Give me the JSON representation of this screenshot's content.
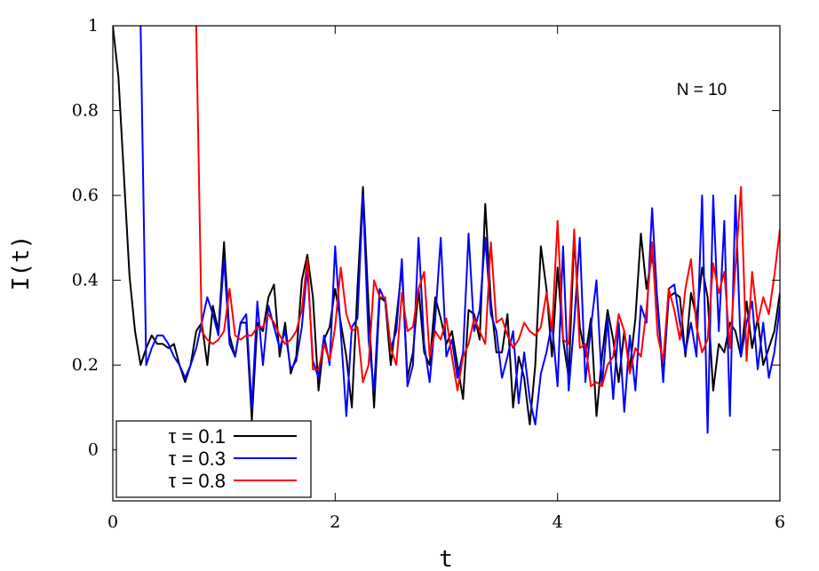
{
  "chart_data": {
    "type": "line",
    "xlabel": "t",
    "ylabel": "I(t)",
    "xlim": [
      0,
      6
    ],
    "ylim": [
      -0.12,
      1.0
    ],
    "xticks": [
      "0",
      "2",
      "4",
      "6"
    ],
    "yticks": [
      "0",
      "0.2",
      "0.4",
      "0.6",
      "0.8",
      "1"
    ],
    "annotation": "N = 10",
    "grid": false,
    "legend_position": "bottom-left",
    "series": [
      {
        "name": "τ = 0.1",
        "color": "#000000",
        "x": [
          0.0,
          0.05,
          0.15,
          0.2,
          0.25,
          0.3,
          0.35,
          0.4,
          0.45,
          0.5,
          0.55,
          0.6,
          0.65,
          0.7,
          0.75,
          0.8,
          0.85,
          0.9,
          0.95,
          1.0,
          1.05,
          1.1,
          1.15,
          1.2,
          1.25,
          1.3,
          1.35,
          1.4,
          1.45,
          1.5,
          1.55,
          1.6,
          1.65,
          1.7,
          1.75,
          1.8,
          1.85,
          1.9,
          1.95,
          2.0,
          2.05,
          2.1,
          2.15,
          2.2,
          2.25,
          2.3,
          2.35,
          2.4,
          2.45,
          2.5,
          2.55,
          2.6,
          2.65,
          2.7,
          2.75,
          2.8,
          2.85,
          2.9,
          2.95,
          3.0,
          3.05,
          3.1,
          3.15,
          3.2,
          3.25,
          3.3,
          3.35,
          3.4,
          3.45,
          3.5,
          3.55,
          3.6,
          3.65,
          3.7,
          3.75,
          3.8,
          3.85,
          3.9,
          3.95,
          4.0,
          4.05,
          4.1,
          4.15,
          4.2,
          4.25,
          4.3,
          4.35,
          4.4,
          4.45,
          4.5,
          4.55,
          4.6,
          4.65,
          4.7,
          4.75,
          4.8,
          4.85,
          4.9,
          4.95,
          5.0,
          5.05,
          5.1,
          5.15,
          5.2,
          5.25,
          5.3,
          5.35,
          5.4,
          5.45,
          5.5,
          5.55,
          5.6,
          5.65,
          5.7,
          5.75,
          5.8,
          5.85,
          5.9,
          5.95,
          6.0
        ],
        "values": [
          1.0,
          0.88,
          0.41,
          0.28,
          0.2,
          0.24,
          0.27,
          0.25,
          0.25,
          0.24,
          0.25,
          0.2,
          0.16,
          0.2,
          0.28,
          0.3,
          0.2,
          0.34,
          0.28,
          0.49,
          0.27,
          0.22,
          0.3,
          0.3,
          0.07,
          0.3,
          0.28,
          0.36,
          0.39,
          0.22,
          0.3,
          0.18,
          0.22,
          0.4,
          0.46,
          0.36,
          0.14,
          0.26,
          0.29,
          0.38,
          0.3,
          0.22,
          0.1,
          0.38,
          0.62,
          0.34,
          0.1,
          0.36,
          0.35,
          0.2,
          0.31,
          0.43,
          0.17,
          0.23,
          0.38,
          0.23,
          0.2,
          0.36,
          0.31,
          0.25,
          0.28,
          0.2,
          0.12,
          0.33,
          0.32,
          0.26,
          0.58,
          0.35,
          0.23,
          0.23,
          0.32,
          0.1,
          0.22,
          0.17,
          0.06,
          0.2,
          0.48,
          0.38,
          0.22,
          0.43,
          0.26,
          0.17,
          0.5,
          0.29,
          0.22,
          0.31,
          0.08,
          0.22,
          0.33,
          0.26,
          0.16,
          0.28,
          0.19,
          0.31,
          0.51,
          0.38,
          0.46,
          0.35,
          0.17,
          0.36,
          0.37,
          0.36,
          0.22,
          0.37,
          0.31,
          0.43,
          0.36,
          0.14,
          0.25,
          0.23,
          0.3,
          0.28,
          0.22,
          0.35,
          0.24,
          0.31,
          0.2,
          0.24,
          0.28,
          0.37
        ]
      },
      {
        "name": "τ = 0.3",
        "color": "#0000ff",
        "x": [
          0.25,
          0.3,
          0.35,
          0.4,
          0.45,
          0.5,
          0.55,
          0.6,
          0.65,
          0.7,
          0.75,
          0.8,
          0.85,
          0.9,
          0.95,
          1.0,
          1.05,
          1.1,
          1.15,
          1.2,
          1.25,
          1.3,
          1.35,
          1.4,
          1.45,
          1.5,
          1.55,
          1.6,
          1.65,
          1.7,
          1.75,
          1.8,
          1.85,
          1.9,
          1.95,
          2.0,
          2.05,
          2.1,
          2.15,
          2.2,
          2.25,
          2.3,
          2.35,
          2.4,
          2.45,
          2.5,
          2.55,
          2.6,
          2.65,
          2.7,
          2.75,
          2.8,
          2.85,
          2.9,
          2.95,
          3.0,
          3.05,
          3.1,
          3.15,
          3.2,
          3.25,
          3.3,
          3.35,
          3.4,
          3.45,
          3.5,
          3.55,
          3.6,
          3.65,
          3.7,
          3.75,
          3.8,
          3.85,
          3.9,
          3.95,
          4.0,
          4.05,
          4.1,
          4.15,
          4.2,
          4.25,
          4.3,
          4.35,
          4.4,
          4.45,
          4.5,
          4.55,
          4.6,
          4.65,
          4.7,
          4.75,
          4.8,
          4.85,
          4.9,
          4.95,
          5.0,
          5.05,
          5.1,
          5.15,
          5.2,
          5.25,
          5.3,
          5.35,
          5.4,
          5.45,
          5.5,
          5.55,
          5.6,
          5.65,
          5.7,
          5.75,
          5.8,
          5.85,
          5.9,
          5.95,
          6.0
        ],
        "values": [
          1.0,
          0.2,
          0.24,
          0.27,
          0.27,
          0.25,
          0.22,
          0.2,
          0.17,
          0.2,
          0.24,
          0.3,
          0.36,
          0.32,
          0.27,
          0.45,
          0.25,
          0.22,
          0.3,
          0.32,
          0.1,
          0.35,
          0.2,
          0.34,
          0.29,
          0.24,
          0.28,
          0.19,
          0.21,
          0.29,
          0.43,
          0.21,
          0.17,
          0.27,
          0.2,
          0.48,
          0.28,
          0.08,
          0.29,
          0.31,
          0.6,
          0.26,
          0.14,
          0.38,
          0.35,
          0.24,
          0.28,
          0.45,
          0.15,
          0.2,
          0.5,
          0.25,
          0.16,
          0.31,
          0.5,
          0.22,
          0.26,
          0.17,
          0.23,
          0.51,
          0.28,
          0.33,
          0.5,
          0.32,
          0.28,
          0.17,
          0.22,
          0.28,
          0.11,
          0.23,
          0.12,
          0.06,
          0.18,
          0.23,
          0.3,
          0.15,
          0.48,
          0.14,
          0.3,
          0.5,
          0.16,
          0.29,
          0.4,
          0.15,
          0.31,
          0.12,
          0.3,
          0.09,
          0.27,
          0.14,
          0.34,
          0.3,
          0.57,
          0.34,
          0.16,
          0.38,
          0.39,
          0.3,
          0.23,
          0.3,
          0.22,
          0.6,
          0.04,
          0.6,
          0.28,
          0.54,
          0.08,
          0.6,
          0.22,
          0.3,
          0.35,
          0.19,
          0.3,
          0.17,
          0.23,
          0.34
        ]
      },
      {
        "name": "τ = 0.8",
        "color": "#ff0000",
        "x": [
          0.75,
          0.8,
          0.85,
          0.9,
          0.95,
          1.0,
          1.05,
          1.1,
          1.15,
          1.2,
          1.25,
          1.3,
          1.35,
          1.4,
          1.45,
          1.5,
          1.55,
          1.6,
          1.65,
          1.7,
          1.75,
          1.8,
          1.85,
          1.9,
          1.95,
          2.0,
          2.05,
          2.1,
          2.15,
          2.2,
          2.25,
          2.3,
          2.35,
          2.4,
          2.45,
          2.5,
          2.55,
          2.6,
          2.65,
          2.7,
          2.75,
          2.8,
          2.85,
          2.9,
          2.95,
          3.0,
          3.05,
          3.1,
          3.15,
          3.2,
          3.25,
          3.3,
          3.35,
          3.4,
          3.45,
          3.5,
          3.55,
          3.6,
          3.65,
          3.7,
          3.75,
          3.8,
          3.85,
          3.9,
          3.95,
          4.0,
          4.05,
          4.1,
          4.15,
          4.2,
          4.25,
          4.3,
          4.35,
          4.4,
          4.45,
          4.5,
          4.55,
          4.6,
          4.65,
          4.7,
          4.75,
          4.8,
          4.85,
          4.9,
          4.95,
          5.0,
          5.05,
          5.1,
          5.15,
          5.2,
          5.25,
          5.3,
          5.35,
          5.4,
          5.45,
          5.5,
          5.55,
          5.6,
          5.65,
          5.7,
          5.75,
          5.8,
          5.85,
          5.9,
          5.95,
          6.0
        ],
        "values": [
          1.0,
          0.28,
          0.26,
          0.25,
          0.26,
          0.28,
          0.38,
          0.27,
          0.26,
          0.27,
          0.27,
          0.29,
          0.29,
          0.32,
          0.3,
          0.27,
          0.25,
          0.26,
          0.28,
          0.33,
          0.45,
          0.19,
          0.19,
          0.25,
          0.21,
          0.29,
          0.43,
          0.32,
          0.28,
          0.29,
          0.16,
          0.2,
          0.4,
          0.36,
          0.36,
          0.24,
          0.2,
          0.37,
          0.28,
          0.29,
          0.38,
          0.42,
          0.22,
          0.28,
          0.26,
          0.31,
          0.22,
          0.14,
          0.22,
          0.25,
          0.31,
          0.28,
          0.25,
          0.49,
          0.3,
          0.31,
          0.27,
          0.24,
          0.26,
          0.3,
          0.28,
          0.27,
          0.29,
          0.37,
          0.28,
          0.54,
          0.26,
          0.25,
          0.52,
          0.24,
          0.25,
          0.15,
          0.16,
          0.15,
          0.2,
          0.22,
          0.32,
          0.28,
          0.18,
          0.24,
          0.22,
          0.33,
          0.49,
          0.27,
          0.21,
          0.38,
          0.33,
          0.26,
          0.38,
          0.45,
          0.29,
          0.23,
          0.26,
          0.44,
          0.37,
          0.42,
          0.24,
          0.43,
          0.62,
          0.21,
          0.42,
          0.3,
          0.36,
          0.32,
          0.41,
          0.52
        ]
      }
    ]
  }
}
